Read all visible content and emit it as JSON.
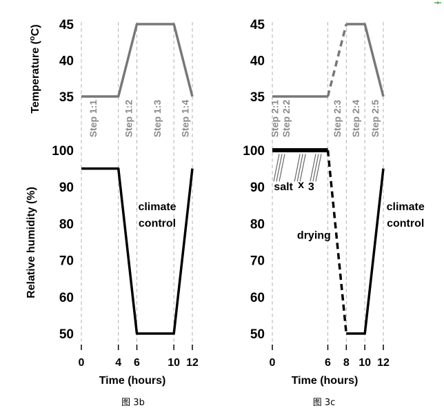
{
  "colors": {
    "temperature_line": "#777777",
    "humidity_line": "#000000",
    "step_label": "#8a8a8a",
    "guide": "#b0b0b0",
    "corner_mark": "#4caf50"
  },
  "chart_data": [
    {
      "id": "fig3b",
      "type": "line",
      "caption": "图 3b",
      "xlabel": "Time (hours)",
      "xticks": [
        0,
        4,
        6,
        10,
        12
      ],
      "xlim": [
        0,
        12
      ],
      "temperature": {
        "ylabel": "Temperature (ºC)",
        "ylabel_parts": [
          "Temperature (",
          "o",
          "C)"
        ],
        "yticks": [
          35,
          40,
          45
        ],
        "ylim": [
          35,
          45
        ],
        "series": [
          {
            "name": "Temperature",
            "style": "solid",
            "x": [
              0,
              4,
              6,
              10,
              12
            ],
            "y": [
              35,
              35,
              45,
              45,
              35
            ]
          }
        ]
      },
      "humidity": {
        "ylabel": "Relative humidity (%)",
        "yticks": [
          50,
          60,
          70,
          80,
          90,
          100
        ],
        "ylim": [
          50,
          100
        ],
        "series": [
          {
            "name": "Relative humidity",
            "style": "solid",
            "x": [
              0,
              4,
              6,
              10,
              12
            ],
            "y": [
              95,
              95,
              50,
              50,
              95
            ]
          }
        ],
        "annotations": [
          {
            "text": "climate",
            "x": 8.2,
            "y": 84.8
          },
          {
            "text": "control",
            "x": 8.2,
            "y": 80.3
          }
        ]
      },
      "steps": [
        {
          "label": "Step 1:1",
          "x": 1.25
        },
        {
          "label": "Step 1:2",
          "x": 5.1
        },
        {
          "label": "Step 1:3",
          "x": 8.2
        },
        {
          "label": "Step 1:4",
          "x": 11.2
        }
      ],
      "guides": [
        0,
        4,
        6,
        10,
        12
      ]
    },
    {
      "id": "fig3c",
      "type": "line",
      "caption": "图 3c",
      "xlabel": "Time (hours)",
      "xticks": [
        0,
        6,
        8,
        10,
        12
      ],
      "xlim": [
        0,
        12
      ],
      "temperature": {
        "yticks": [
          35,
          40,
          45
        ],
        "ylim": [
          35,
          45
        ],
        "series": [
          {
            "name": "Temperature",
            "style": "solid",
            "x": [
              0,
              6
            ],
            "y": [
              35,
              35
            ]
          },
          {
            "name": "Temperature",
            "style": "dashed",
            "x": [
              6,
              8
            ],
            "y": [
              35,
              45
            ]
          },
          {
            "name": "Temperature",
            "style": "solid",
            "x": [
              8,
              10,
              12
            ],
            "y": [
              45,
              45,
              35
            ]
          }
        ]
      },
      "humidity": {
        "yticks": [
          50,
          60,
          70,
          80,
          90,
          100
        ],
        "ylim": [
          50,
          100
        ],
        "series": [
          {
            "name": "Relative humidity",
            "style": "bold",
            "x": [
              0,
              6
            ],
            "y": [
              100,
              100
            ]
          },
          {
            "name": "Relative humidity",
            "style": "dashed",
            "x": [
              6,
              8
            ],
            "y": [
              100,
              50
            ]
          },
          {
            "name": "Relative humidity",
            "style": "solid",
            "x": [
              8,
              10,
              12
            ],
            "y": [
              50,
              50,
              95
            ]
          }
        ],
        "annotations": [
          {
            "text": "salt",
            "x": 1.2,
            "y": 90.2
          },
          {
            "text": "x",
            "x": 3.1,
            "y": 90.8
          },
          {
            "text": "3",
            "x": 4.2,
            "y": 90.2
          },
          {
            "text": "drying",
            "x": 4.5,
            "y": 77.0
          },
          {
            "text": "climate",
            "x": 14.4,
            "y": 84.8
          },
          {
            "text": "control",
            "x": 14.4,
            "y": 80.3
          }
        ],
        "salt_marks_x": [
          0.15,
          2.4,
          4.1
        ]
      },
      "steps": [
        {
          "label": "Step 2:1",
          "x": 0.25
        },
        {
          "label": "Step 2:2",
          "x": 1.5
        },
        {
          "label": "Step 2:3",
          "x": 7.0
        },
        {
          "label": "Step 2:4",
          "x": 9.0
        },
        {
          "label": "Step 2:5",
          "x": 11.1
        }
      ],
      "guides": [
        0,
        6,
        8,
        10,
        12
      ]
    }
  ]
}
